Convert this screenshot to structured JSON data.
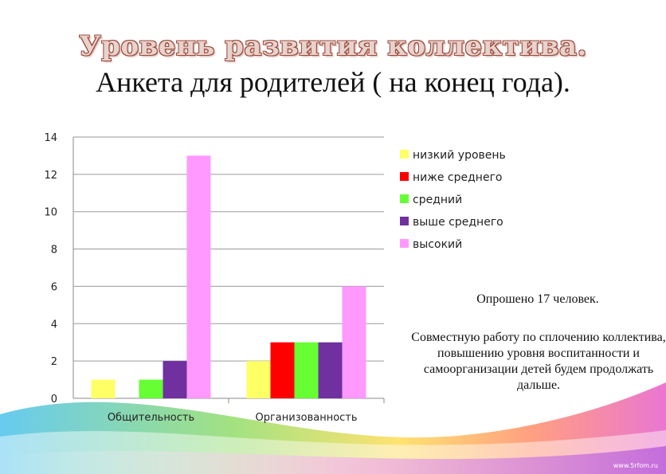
{
  "title": "Уровень развития коллектива.",
  "subtitle": "Анкета для родителей ( на конец года).",
  "notes": {
    "surveyed": "Опрошено 17 человек.",
    "plan": "Совместную работу по сплочению коллектива, повышению уровня воспитанности и самоорганизации детей будем продолжать дальше."
  },
  "watermark": "www.5rfom.ru",
  "chart_data": {
    "type": "bar",
    "categories": [
      "Общительность",
      "Организованность"
    ],
    "series": [
      {
        "name": "низкий уровень",
        "color": "#ffff66",
        "values": [
          1,
          2
        ]
      },
      {
        "name": "ниже среднего",
        "color": "#ff0000",
        "values": [
          0,
          3
        ]
      },
      {
        "name": "средний",
        "color": "#66ff33",
        "values": [
          1,
          3
        ]
      },
      {
        "name": "выше среднего",
        "color": "#7030a0",
        "values": [
          2,
          3
        ]
      },
      {
        "name": "высокий",
        "color": "#ff99ff",
        "values": [
          13,
          6
        ]
      }
    ],
    "ylim": [
      0,
      14
    ],
    "yticks": [
      "0",
      "2",
      "4",
      "6",
      "8",
      "10",
      "12",
      "14"
    ],
    "grid": true,
    "legend": "right",
    "xlabel": "",
    "ylabel": ""
  }
}
